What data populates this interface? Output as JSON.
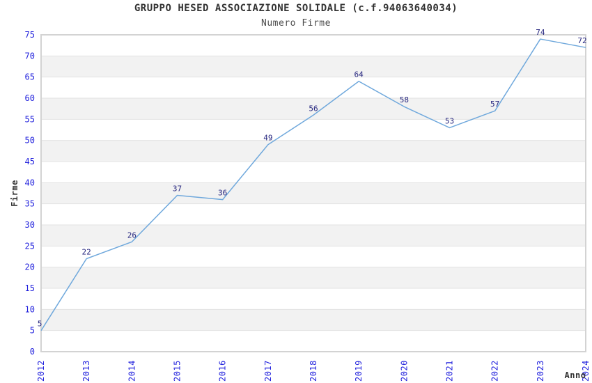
{
  "chart_data": {
    "type": "line",
    "title": "GRUPPO HESED ASSOCIAZIONE SOLIDALE (c.f.94063640034)",
    "subtitle": "Numero Firme",
    "xlabel": "Anno",
    "ylabel": "Firme",
    "categories": [
      "2012",
      "2013",
      "2014",
      "2015",
      "2016",
      "2017",
      "2018",
      "2019",
      "2020",
      "2021",
      "2022",
      "2023",
      "2024"
    ],
    "values": [
      5,
      22,
      26,
      37,
      36,
      49,
      56,
      64,
      58,
      53,
      57,
      74,
      72
    ],
    "series_name": "Numero Firme",
    "ylim": [
      0,
      75
    ],
    "ytick_step": 5,
    "yticks": [
      0,
      5,
      10,
      15,
      20,
      25,
      30,
      35,
      40,
      45,
      50,
      55,
      60,
      65,
      70,
      75
    ],
    "grid": "horizontal",
    "banded_background": true,
    "legend": "none",
    "data_labels_visible": true,
    "colors": {
      "line": "#6fa8dc",
      "tick_label": "#2222dd",
      "data_label": "#26267f",
      "axis_title": "#333333",
      "band": "#f2f2f2",
      "gridline": "#e2e2e2",
      "plot_border": "#d3d3d3",
      "title": "#333333",
      "subtitle": "#4d4d4d",
      "background": "#ffffff"
    }
  }
}
